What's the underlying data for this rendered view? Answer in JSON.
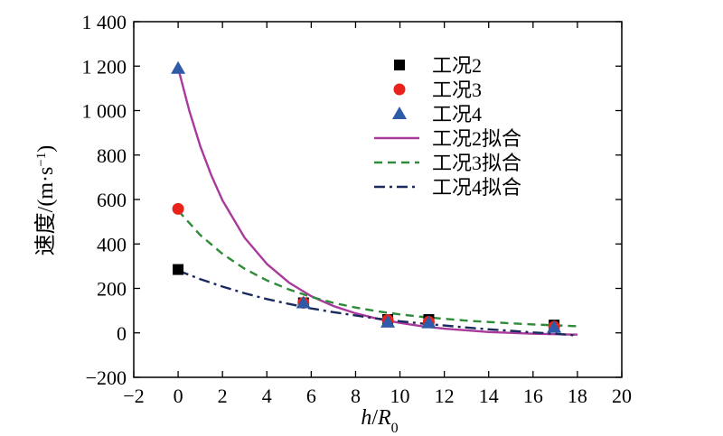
{
  "chart_data": {
    "type": "scatter",
    "xlabel": {
      "main": "h",
      "sep": "/",
      "var": "R",
      "sub": "0"
    },
    "ylabel": {
      "main": "速度/(m·s",
      "sup": "−1",
      "close": ")"
    },
    "xlim": [
      -2,
      20
    ],
    "ylim": [
      -200,
      1400
    ],
    "xticks": [
      -2,
      0,
      2,
      4,
      6,
      8,
      10,
      12,
      14,
      16,
      18,
      20
    ],
    "yticks": [
      -200,
      0,
      200,
      400,
      600,
      800,
      1000,
      1200,
      1400
    ],
    "xtick_labels": [
      "−2",
      "0",
      "2",
      "4",
      "6",
      "8",
      "10",
      "12",
      "14",
      "16",
      "18",
      "20"
    ],
    "ytick_labels": [
      "−200",
      "0",
      "200",
      "400",
      "600",
      "800",
      "1 000",
      "1 200",
      "1 400"
    ],
    "grid": false,
    "legend_position": "top-right",
    "series": [
      {
        "name": "工况2",
        "kind": "marker",
        "marker": "square",
        "color": "#000000",
        "x": [
          0,
          5.65,
          9.45,
          11.3,
          16.95
        ],
        "y": [
          285,
          135,
          60,
          60,
          35
        ]
      },
      {
        "name": "工况3",
        "kind": "marker",
        "marker": "circle",
        "color": "#e8231b",
        "x": [
          0,
          5.65,
          9.45,
          11.3,
          16.95
        ],
        "y": [
          558,
          135,
          58,
          50,
          28
        ]
      },
      {
        "name": "工况4",
        "kind": "marker",
        "marker": "triangle",
        "color": "#2f5aa8",
        "x": [
          0,
          5.65,
          9.45,
          11.3,
          16.95
        ],
        "y": [
          1190,
          135,
          48,
          45,
          25
        ]
      },
      {
        "name": "工况2拟合",
        "kind": "line",
        "dash": "solid",
        "color": "#a93a9c",
        "x": [
          0,
          0.5,
          1,
          1.5,
          2,
          3,
          4,
          5,
          6,
          7,
          8,
          9,
          10,
          11,
          12,
          14,
          16,
          18
        ],
        "y": [
          1192,
          1000,
          840,
          708,
          596,
          428,
          310,
          226,
          165,
          121,
          88,
          63,
          45,
          30,
          19,
          4,
          -4,
          -8
        ]
      },
      {
        "name": "工况3拟合",
        "kind": "line",
        "dash": "dashed",
        "color": "#2e8b3a",
        "x": [
          0,
          1,
          2,
          3,
          4,
          5,
          6,
          7,
          8,
          9,
          10,
          11,
          12,
          13,
          14,
          15,
          16,
          17,
          18
        ],
        "y": [
          550,
          440,
          355,
          288,
          236,
          195,
          162,
          135,
          114,
          97,
          83,
          72,
          63,
          55,
          49,
          43,
          38,
          34,
          30
        ]
      },
      {
        "name": "工况4拟合",
        "kind": "line",
        "dash": "dashdot",
        "color": "#1a2a5e",
        "x": [
          0,
          1,
          2,
          3,
          4,
          5,
          6,
          7,
          8,
          9,
          10,
          11,
          12,
          13,
          14,
          15,
          16,
          17,
          18
        ],
        "y": [
          280,
          242,
          208,
          178,
          152,
          130,
          110,
          93,
          78,
          64,
          52,
          42,
          33,
          24,
          16,
          9,
          2,
          -4,
          -12
        ]
      }
    ]
  }
}
